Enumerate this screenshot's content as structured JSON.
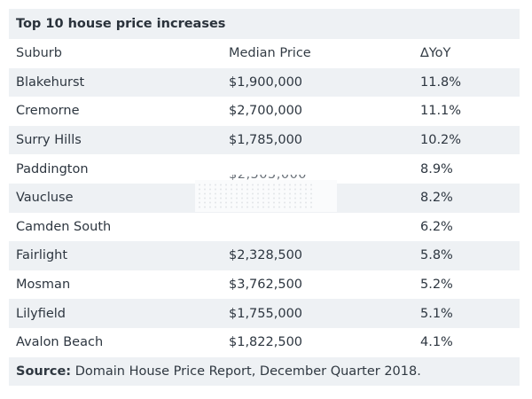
{
  "title": "Top 10 house price increases",
  "headers": {
    "suburb": "Suburb",
    "price": "Median Price",
    "yoy": "∆YoY"
  },
  "rows": [
    {
      "suburb": "Blakehurst",
      "price": "$1,900,000",
      "yoy": "11.8%"
    },
    {
      "suburb": "Cremorne",
      "price": "$2,700,000",
      "yoy": "11.1%"
    },
    {
      "suburb": "Surry Hills",
      "price": "$1,785,000",
      "yoy": "10.2%"
    },
    {
      "suburb": "Paddington",
      "price": "$2,505,000",
      "yoy": "8.9%"
    },
    {
      "suburb": "Vaucluse",
      "price": "",
      "yoy": "8.2%"
    },
    {
      "suburb": "Camden South",
      "price": "",
      "yoy": "6.2%"
    },
    {
      "suburb": "Fairlight",
      "price": "$2,328,500",
      "yoy": "5.8%"
    },
    {
      "suburb": "Mosman",
      "price": "$3,762,500",
      "yoy": "5.2%"
    },
    {
      "suburb": "Lilyfield",
      "price": "$1,755,000",
      "yoy": "5.1%"
    },
    {
      "suburb": "Avalon Beach",
      "price": "$1,822,500",
      "yoy": "4.1%"
    }
  ],
  "footer": {
    "label": "Source:",
    "text": " Domain House Price Report, December Quarter 2018."
  }
}
